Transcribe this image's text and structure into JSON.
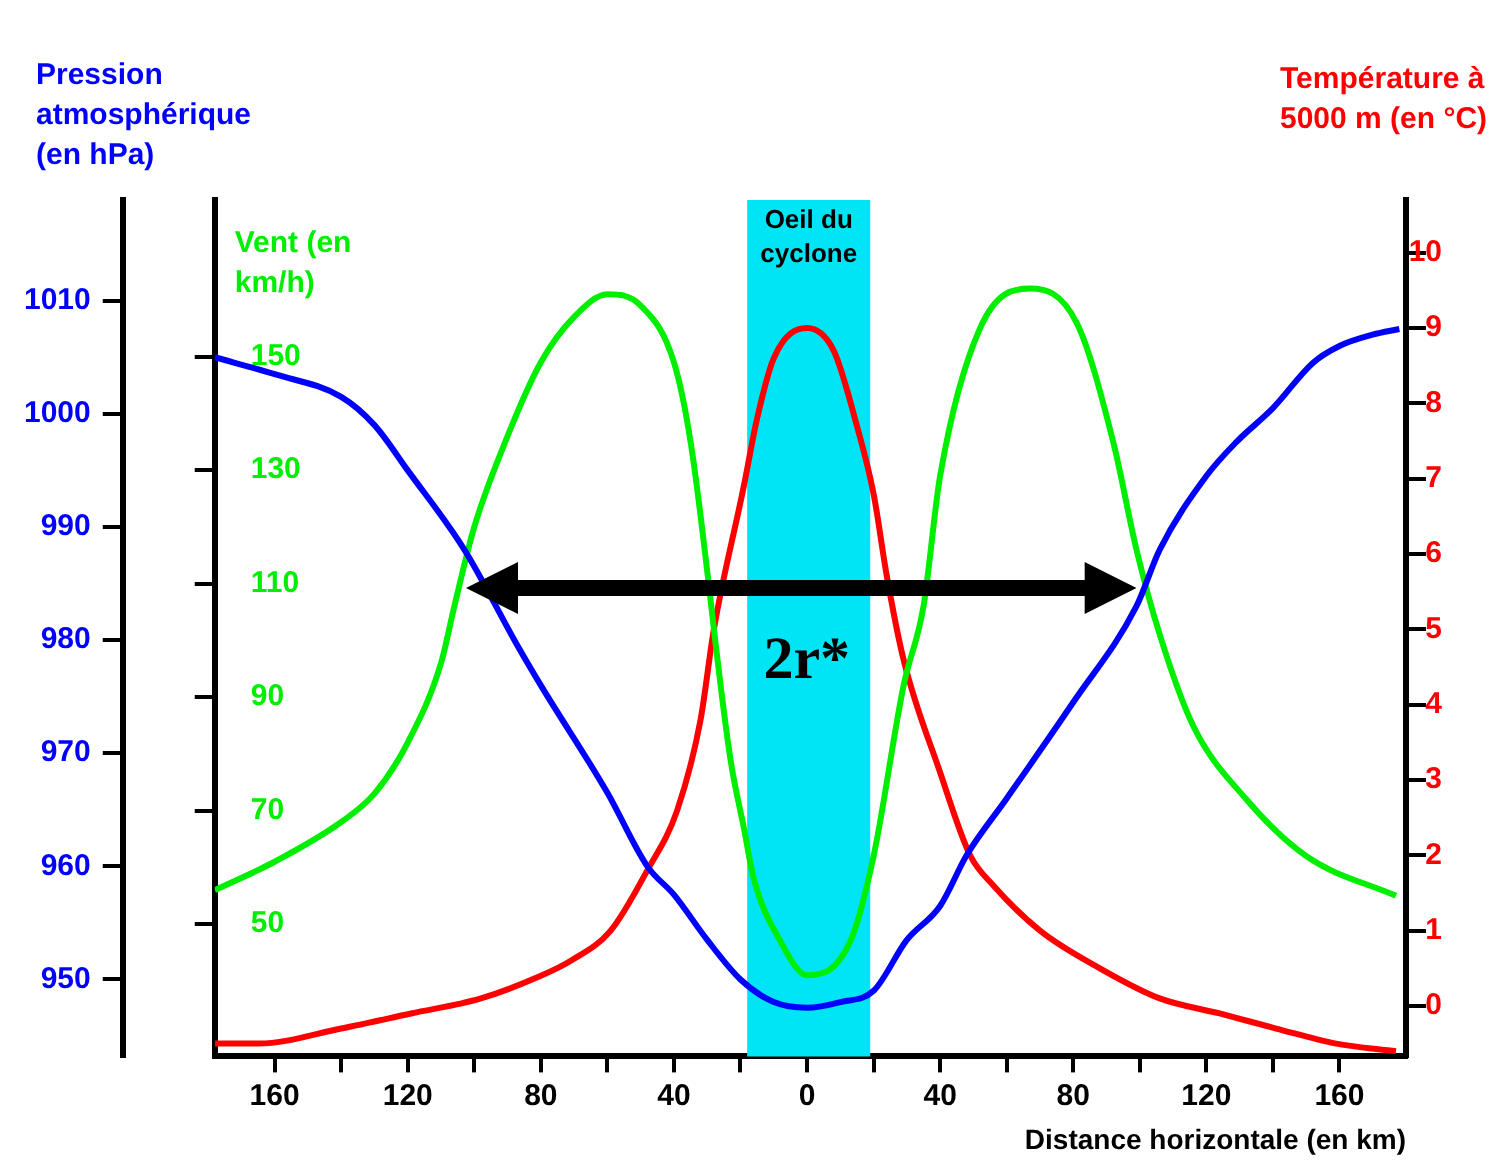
{
  "chart_data": {
    "type": "line",
    "xlabel": "Distance horizontale (en km)",
    "ylabel": "Pression atmosphérique (en hPa)",
    "y2label": "Température à 5000 m (en °C)",
    "y3label": "Vent (en km/h)",
    "xlim": [
      -178,
      180
    ],
    "xticks": [
      {
        "value": -160,
        "label": "160"
      },
      {
        "value": -140,
        "label": null
      },
      {
        "value": -120,
        "label": "120"
      },
      {
        "value": -100,
        "label": null
      },
      {
        "value": -80,
        "label": "80"
      },
      {
        "value": -60,
        "label": null
      },
      {
        "value": -40,
        "label": "40"
      },
      {
        "value": -20,
        "label": null
      },
      0,
      {
        "value": 20,
        "label": null
      },
      40,
      {
        "value": 60,
        "label": null
      },
      80,
      {
        "value": 100,
        "label": null
      },
      120,
      {
        "value": 140,
        "label": null
      },
      160
    ],
    "ylim": [
      943.2,
      1018.9
    ],
    "yticks": [
      950,
      960,
      970,
      980,
      990,
      1000,
      1010
    ],
    "y2lim": [
      -0.67,
      10.7
    ],
    "y2ticks": [
      0,
      1,
      2,
      3,
      4,
      5,
      6,
      7,
      8,
      9,
      10
    ],
    "y3lim": [
      26.7,
      177.6
    ],
    "y3ticks": [
      50,
      70,
      90,
      110,
      130,
      150
    ],
    "grid": false,
    "legend": false,
    "marker": "none",
    "line_style": "solid",
    "bands": [
      {
        "axis": "x",
        "from": -18,
        "to": 19,
        "label": "Oeil du cyclone",
        "color": "#00e5f5"
      }
    ],
    "annotations": [
      "2r*"
    ],
    "series": [
      {
        "color": "#0000ff",
        "axis": "y",
        "x": [
          -178,
          -160,
          -140,
          -130,
          -120,
          -103,
          -87,
          -80,
          -60,
          -48,
          -40,
          -30,
          -20,
          -10,
          0,
          10,
          20,
          30,
          40,
          48,
          60,
          80,
          99,
          106,
          120,
          129,
          140,
          152,
          160,
          170,
          178
        ],
        "values": [
          1005,
          1003.5,
          1001.5,
          999,
          995,
          988,
          979.5,
          976,
          966.5,
          960,
          957.5,
          953.5,
          950,
          948,
          947.5,
          948,
          949,
          953.5,
          956.5,
          961,
          966,
          974.5,
          983,
          988,
          994.5,
          997.5,
          1000.5,
          1004.5,
          1006,
          1007,
          1007.5
        ]
      },
      {
        "color": "#00ee00",
        "axis": "y3",
        "x": [
          -178,
          -160,
          -140,
          -130,
          -120,
          -110,
          -106,
          -100,
          -90,
          -80,
          -70,
          -60,
          -50,
          -40,
          -35,
          -23,
          -19,
          -16,
          -8,
          0,
          13,
          20,
          29,
          35,
          40,
          52,
          67,
          81,
          92,
          99,
          106,
          116,
          132,
          150,
          177
        ],
        "values": [
          56,
          61,
          68,
          73,
          82,
          96,
          106,
          120,
          136,
          149,
          157,
          161,
          159,
          149,
          135,
          79,
          67,
          58,
          47,
          41,
          47,
          62,
          92,
          106,
          129,
          155,
          162,
          156,
          135,
          116,
          101,
          85,
          72,
          62,
          55
        ]
      },
      {
        "color": "#ff0000",
        "axis": "y2",
        "x": [
          -178,
          -165,
          -140,
          -119,
          -98,
          -80,
          -71,
          -59,
          -48,
          -39,
          -32,
          -28,
          -19,
          -15,
          -10,
          0,
          8,
          15,
          20,
          24,
          29,
          40,
          49,
          56,
          70,
          88,
          106,
          124,
          141,
          159,
          177
        ],
        "values": [
          -0.5,
          -0.5,
          -0.3,
          -0.1,
          0.1,
          0.4,
          0.6,
          1,
          1.8,
          2.6,
          3.8,
          5,
          6.9,
          7.8,
          8.6,
          9,
          8.7,
          7.7,
          6.8,
          5.7,
          4.6,
          3.1,
          2,
          1.6,
          1,
          0.5,
          0.1,
          -0.1,
          -0.3,
          -0.5,
          -0.6
        ]
      }
    ]
  }
}
